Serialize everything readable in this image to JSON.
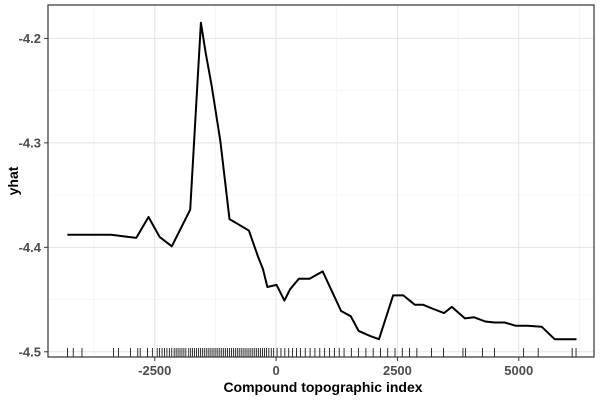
{
  "chart_data": {
    "type": "line",
    "title": "",
    "xlabel": "Compound topographic index",
    "ylabel": "yhat",
    "xlim": [
      -4700,
      6550
    ],
    "ylim": [
      -4.505,
      -4.168
    ],
    "x_ticks": [
      -2500,
      0,
      2500,
      5000
    ],
    "x_tick_labels": [
      "-2500",
      "0",
      "2500",
      "5000"
    ],
    "y_ticks": [
      -4.2,
      -4.3,
      -4.4,
      -4.5
    ],
    "y_tick_labels": [
      "-4.2",
      "-4.3",
      "-4.4",
      "-4.5"
    ],
    "grid": true,
    "legend": "none",
    "line_color": "#000000",
    "series": [
      {
        "x": [
          -4300,
          -3950,
          -3400,
          -2880,
          -2630,
          -2400,
          -2150,
          -1770,
          -1550,
          -1450,
          -1330,
          -1150,
          -960,
          -780,
          -560,
          -380,
          -270,
          -180,
          10,
          170,
          290,
          470,
          690,
          960,
          1130,
          1340,
          1540,
          1700,
          1940,
          2120,
          2410,
          2620,
          2860,
          3030,
          3240,
          3460,
          3620,
          3890,
          4080,
          4310,
          4500,
          4710,
          4930,
          5180,
          5470,
          5740,
          5930,
          6190
        ],
        "y": [
          -4.388,
          -4.388,
          -4.388,
          -4.391,
          -4.371,
          -4.39,
          -4.399,
          -4.364,
          -4.185,
          -4.214,
          -4.245,
          -4.298,
          -4.373,
          -4.378,
          -4.384,
          -4.408,
          -4.421,
          -4.438,
          -4.436,
          -4.451,
          -4.44,
          -4.43,
          -4.43,
          -4.423,
          -4.44,
          -4.461,
          -4.466,
          -4.48,
          -4.485,
          -4.488,
          -4.446,
          -4.446,
          -4.455,
          -4.455,
          -4.459,
          -4.463,
          -4.457,
          -4.468,
          -4.467,
          -4.471,
          -4.472,
          -4.472,
          -4.475,
          -4.475,
          -4.476,
          -4.488,
          -4.488,
          -4.488
        ]
      }
    ],
    "rug_x": [
      -4300,
      -4180,
      -4000,
      -3350,
      -3250,
      -3000,
      -2850,
      -2800,
      -2650,
      -2550,
      -2450,
      -2400,
      -2350,
      -2300,
      -2250,
      -2200,
      -2150,
      -2100,
      -2060,
      -2020,
      -1980,
      -1940,
      -1900,
      -1860,
      -1800,
      -1760,
      -1720,
      -1680,
      -1640,
      -1600,
      -1560,
      -1520,
      -1480,
      -1440,
      -1400,
      -1360,
      -1320,
      -1280,
      -1240,
      -1200,
      -1160,
      -1120,
      -1080,
      -1040,
      -1000,
      -960,
      -920,
      -880,
      -840,
      -800,
      -760,
      -720,
      -680,
      -640,
      -600,
      -560,
      -520,
      -480,
      -440,
      -400,
      -360,
      -320,
      -280,
      -240,
      -200,
      -150,
      -100,
      -50,
      20,
      100,
      180,
      260,
      340,
      420,
      500,
      600,
      700,
      800,
      900,
      1000,
      1100,
      1200,
      1300,
      1400,
      1550,
      1700,
      1850,
      2000,
      2150,
      2300,
      2450,
      2600,
      2750,
      2900,
      3200,
      3450,
      3850,
      3900,
      4250,
      4500,
      5100,
      5400,
      6100,
      6180
    ]
  }
}
